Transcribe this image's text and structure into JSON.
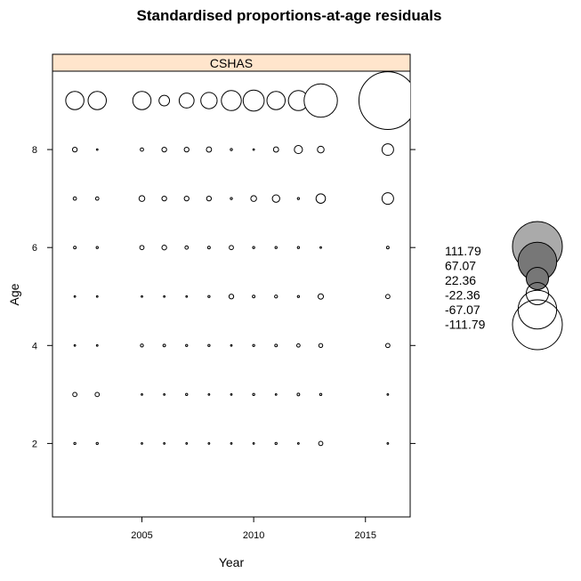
{
  "chart_data": {
    "type": "scatter",
    "title": "Standardised proportions-at-age residuals",
    "xlabel": "Year",
    "ylabel": "Age",
    "panel_label": "CSHAS",
    "xlim": [
      2001,
      2017
    ],
    "ylim": [
      0.5,
      9.6
    ],
    "x_ticks": [
      2005,
      2010,
      2015
    ],
    "y_ticks": [
      2,
      4,
      6,
      8
    ],
    "grid": false,
    "bubble_scale_max": 111.79,
    "colors": {
      "strip": "#ffe5cc",
      "positive_large": "#aaaaaa",
      "positive_medium": "#777777",
      "negative": "#ffffff",
      "stroke": "#000000"
    },
    "points": [
      {
        "x": 2002,
        "y": 9,
        "v": -15
      },
      {
        "x": 2003,
        "y": 9,
        "v": -15
      },
      {
        "x": 2005,
        "y": 9,
        "v": -15
      },
      {
        "x": 2006,
        "y": 9,
        "v": -5
      },
      {
        "x": 2007,
        "y": 9,
        "v": -10
      },
      {
        "x": 2008,
        "y": 9,
        "v": -12
      },
      {
        "x": 2009,
        "y": 9,
        "v": -18
      },
      {
        "x": 2010,
        "y": 9,
        "v": -20
      },
      {
        "x": 2011,
        "y": 9,
        "v": -15
      },
      {
        "x": 2012,
        "y": 9,
        "v": -18
      },
      {
        "x": 2013,
        "y": 9,
        "v": -50
      },
      {
        "x": 2016,
        "y": 9,
        "v": -150
      },
      {
        "x": 2002,
        "y": 8,
        "v": -1
      },
      {
        "x": 2003,
        "y": 8,
        "v": -0.1
      },
      {
        "x": 2005,
        "y": 8,
        "v": -0.5
      },
      {
        "x": 2006,
        "y": 8,
        "v": -1
      },
      {
        "x": 2007,
        "y": 8,
        "v": -1
      },
      {
        "x": 2008,
        "y": 8,
        "v": -1.2
      },
      {
        "x": 2009,
        "y": 8,
        "v": -0.2
      },
      {
        "x": 2010,
        "y": 8,
        "v": -0.1
      },
      {
        "x": 2011,
        "y": 8,
        "v": -1.2
      },
      {
        "x": 2012,
        "y": 8,
        "v": -3
      },
      {
        "x": 2013,
        "y": 8,
        "v": -2
      },
      {
        "x": 2016,
        "y": 8,
        "v": -6
      },
      {
        "x": 2002,
        "y": 7,
        "v": -0.5
      },
      {
        "x": 2003,
        "y": 7,
        "v": -0.5
      },
      {
        "x": 2005,
        "y": 7,
        "v": -1.5
      },
      {
        "x": 2006,
        "y": 7,
        "v": -1
      },
      {
        "x": 2007,
        "y": 7,
        "v": -1
      },
      {
        "x": 2008,
        "y": 7,
        "v": -1
      },
      {
        "x": 2009,
        "y": 7,
        "v": -0.2
      },
      {
        "x": 2010,
        "y": 7,
        "v": -1.5
      },
      {
        "x": 2011,
        "y": 7,
        "v": -2.5
      },
      {
        "x": 2012,
        "y": 7,
        "v": -0.2
      },
      {
        "x": 2013,
        "y": 7,
        "v": -4
      },
      {
        "x": 2016,
        "y": 7,
        "v": -6
      },
      {
        "x": 2002,
        "y": 6,
        "v": -0.3
      },
      {
        "x": 2003,
        "y": 6,
        "v": -0.2
      },
      {
        "x": 2005,
        "y": 6,
        "v": -0.8
      },
      {
        "x": 2006,
        "y": 6,
        "v": -1
      },
      {
        "x": 2007,
        "y": 6,
        "v": -0.5
      },
      {
        "x": 2008,
        "y": 6,
        "v": -0.3
      },
      {
        "x": 2009,
        "y": 6,
        "v": -0.8
      },
      {
        "x": 2010,
        "y": 6,
        "v": -0.2
      },
      {
        "x": 2011,
        "y": 6,
        "v": -0.2
      },
      {
        "x": 2012,
        "y": 6,
        "v": -0.2
      },
      {
        "x": 2013,
        "y": 6,
        "v": -0.1
      },
      {
        "x": 2016,
        "y": 6,
        "v": -0.3
      },
      {
        "x": 2002,
        "y": 5,
        "v": -0.1
      },
      {
        "x": 2003,
        "y": 5,
        "v": -0.1
      },
      {
        "x": 2005,
        "y": 5,
        "v": -0.1
      },
      {
        "x": 2006,
        "y": 5,
        "v": -0.1
      },
      {
        "x": 2007,
        "y": 5,
        "v": -0.1
      },
      {
        "x": 2008,
        "y": 5,
        "v": -0.2
      },
      {
        "x": 2009,
        "y": 5,
        "v": -1
      },
      {
        "x": 2010,
        "y": 5,
        "v": -0.3
      },
      {
        "x": 2011,
        "y": 5,
        "v": -0.4
      },
      {
        "x": 2012,
        "y": 5,
        "v": -0.2
      },
      {
        "x": 2013,
        "y": 5,
        "v": -1.3
      },
      {
        "x": 2016,
        "y": 5,
        "v": -0.8
      },
      {
        "x": 2002,
        "y": 4,
        "v": -0.1
      },
      {
        "x": 2003,
        "y": 4,
        "v": -0.1
      },
      {
        "x": 2005,
        "y": 4,
        "v": -0.4
      },
      {
        "x": 2006,
        "y": 4,
        "v": -0.3
      },
      {
        "x": 2007,
        "y": 4,
        "v": -0.2
      },
      {
        "x": 2008,
        "y": 4,
        "v": -0.2
      },
      {
        "x": 2009,
        "y": 4,
        "v": -0.1
      },
      {
        "x": 2010,
        "y": 4,
        "v": -0.2
      },
      {
        "x": 2011,
        "y": 4,
        "v": -0.3
      },
      {
        "x": 2012,
        "y": 4,
        "v": -0.5
      },
      {
        "x": 2013,
        "y": 4,
        "v": -0.7
      },
      {
        "x": 2016,
        "y": 4,
        "v": -0.8
      },
      {
        "x": 2002,
        "y": 3,
        "v": -0.8
      },
      {
        "x": 2003,
        "y": 3,
        "v": -0.8
      },
      {
        "x": 2005,
        "y": 3,
        "v": -0.1
      },
      {
        "x": 2006,
        "y": 3,
        "v": -0.1
      },
      {
        "x": 2007,
        "y": 3,
        "v": -0.2
      },
      {
        "x": 2008,
        "y": 3,
        "v": -0.1
      },
      {
        "x": 2009,
        "y": 3,
        "v": -0.1
      },
      {
        "x": 2010,
        "y": 3,
        "v": -0.2
      },
      {
        "x": 2011,
        "y": 3,
        "v": -0.1
      },
      {
        "x": 2012,
        "y": 3,
        "v": -0.3
      },
      {
        "x": 2013,
        "y": 3,
        "v": -0.2
      },
      {
        "x": 2016,
        "y": 3,
        "v": -0.1
      },
      {
        "x": 2002,
        "y": 2,
        "v": -0.2
      },
      {
        "x": 2003,
        "y": 2,
        "v": -0.2
      },
      {
        "x": 2005,
        "y": 2,
        "v": -0.1
      },
      {
        "x": 2006,
        "y": 2,
        "v": -0.1
      },
      {
        "x": 2007,
        "y": 2,
        "v": -0.1
      },
      {
        "x": 2008,
        "y": 2,
        "v": -0.1
      },
      {
        "x": 2009,
        "y": 2,
        "v": -0.1
      },
      {
        "x": 2010,
        "y": 2,
        "v": -0.1
      },
      {
        "x": 2011,
        "y": 2,
        "v": -0.2
      },
      {
        "x": 2012,
        "y": 2,
        "v": -0.1
      },
      {
        "x": 2013,
        "y": 2,
        "v": -0.8
      },
      {
        "x": 2016,
        "y": 2,
        "v": -0.1
      }
    ],
    "legend": {
      "labels": [
        "111.79",
        "67.07",
        "22.36",
        "-22.36",
        "-67.07",
        "-111.79"
      ],
      "values": [
        111.79,
        67.07,
        22.36,
        -22.36,
        -67.07,
        -111.79
      ]
    }
  }
}
